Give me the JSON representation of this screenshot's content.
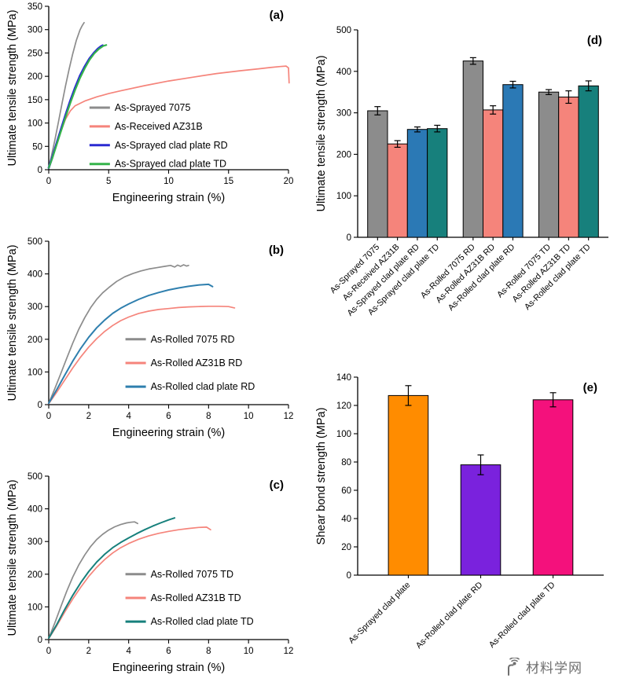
{
  "watermark": {
    "text": "材料学网"
  },
  "chart_data": [
    {
      "panel": "a",
      "type": "line",
      "panel_label": "(a)",
      "xlabel": "Engineering strain (%)",
      "ylabel": "Ultimate tensile strength (MPa)",
      "xlim": [
        0,
        20
      ],
      "ylim": [
        0,
        350
      ],
      "xticks": [
        0,
        5,
        10,
        15,
        20
      ],
      "yticks": [
        0,
        50,
        100,
        150,
        200,
        250,
        300,
        350
      ],
      "legend": {
        "fx": 0.17,
        "fy": 0.62,
        "dy": 0.115
      },
      "series": [
        {
          "name": "As-Sprayed 7075",
          "color": "#8c8c8c",
          "width": 1.7,
          "x": [
            0,
            0.2,
            0.5,
            0.8,
            1.1,
            1.4,
            1.7,
            2.0,
            2.3,
            2.6,
            2.8,
            2.95
          ],
          "y": [
            4,
            26,
            62,
            101,
            141,
            179,
            215,
            248,
            277,
            299,
            309,
            315
          ]
        },
        {
          "name": "As-Received AZ31B",
          "color": "#f5847b",
          "width": 1.7,
          "x": [
            0,
            0.3,
            0.6,
            1.0,
            1.4,
            1.8,
            2.2,
            3.0,
            4.0,
            5.0,
            6.0,
            8.0,
            10.0,
            12.0,
            14.0,
            16.0,
            17.5,
            18.5,
            19.3,
            19.8,
            20.0,
            20.05
          ],
          "y": [
            3,
            24,
            50,
            82,
            108,
            126,
            137,
            147,
            156,
            163,
            169,
            180,
            190,
            198,
            206,
            212,
            216,
            219,
            221,
            222,
            218,
            186
          ]
        },
        {
          "name": "As-Sprayed clad plate RD",
          "color": "#2a2ad2",
          "width": 2.8,
          "x": [
            0,
            0.3,
            0.6,
            1.0,
            1.4,
            1.8,
            2.2,
            2.6,
            3.0,
            3.4,
            3.8,
            4.1,
            4.35,
            4.5
          ],
          "y": [
            4,
            27,
            52,
            85,
            117,
            148,
            176,
            201,
            221,
            238,
            251,
            259,
            264,
            266
          ]
        },
        {
          "name": "As-Sprayed clad plate TD",
          "color": "#35b44a",
          "width": 2.2,
          "x": [
            0,
            0.3,
            0.6,
            1.0,
            1.4,
            1.8,
            2.2,
            2.6,
            3.0,
            3.4,
            3.8,
            4.2,
            4.55,
            4.8
          ],
          "y": [
            4,
            25,
            49,
            81,
            112,
            143,
            171,
            196,
            217,
            235,
            249,
            259,
            265,
            267
          ]
        }
      ]
    },
    {
      "panel": "b",
      "type": "line",
      "panel_label": "(b)",
      "xlabel": "Engineering strain (%)",
      "ylabel": "Ultimate tensile strength (MPa)",
      "xlim": [
        0,
        12
      ],
      "ylim": [
        0,
        500
      ],
      "xticks": [
        0,
        2,
        4,
        6,
        8,
        10,
        12
      ],
      "yticks": [
        0,
        100,
        200,
        300,
        400,
        500
      ],
      "legend": {
        "fx": 0.32,
        "fy": 0.6,
        "dy": 0.145
      },
      "series": [
        {
          "name": "As-Rolled 7075 RD",
          "color": "#8c8c8c",
          "width": 1.7,
          "x": [
            0,
            0.3,
            0.6,
            0.9,
            1.2,
            1.5,
            1.8,
            2.1,
            2.4,
            2.7,
            3.0,
            3.4,
            3.8,
            4.2,
            4.6,
            5.0,
            5.4,
            5.8,
            6.1,
            6.3,
            6.45,
            6.6,
            6.75,
            6.9,
            7.0
          ],
          "y": [
            4,
            48,
            95,
            142,
            188,
            230,
            266,
            297,
            322,
            342,
            358,
            377,
            391,
            401,
            409,
            415,
            419,
            423,
            426,
            421,
            427,
            423,
            428,
            424,
            426
          ]
        },
        {
          "name": "As-Rolled AZ31B RD",
          "color": "#f5847b",
          "width": 1.7,
          "x": [
            0,
            0.4,
            0.8,
            1.2,
            1.6,
            2.0,
            2.4,
            2.8,
            3.2,
            3.6,
            4.0,
            4.5,
            5.0,
            5.5,
            6.0,
            6.5,
            7.0,
            7.5,
            8.0,
            8.5,
            9.0,
            9.3
          ],
          "y": [
            3,
            38,
            75,
            112,
            146,
            176,
            202,
            224,
            242,
            257,
            268,
            279,
            286,
            291,
            294,
            297,
            299,
            300,
            301,
            301,
            300,
            296
          ]
        },
        {
          "name": "As-Rolled clad plate RD",
          "color": "#2f7fae",
          "width": 2.0,
          "x": [
            0,
            0.4,
            0.8,
            1.2,
            1.6,
            2.0,
            2.4,
            2.8,
            3.2,
            3.6,
            4.0,
            4.5,
            5.0,
            5.5,
            6.0,
            6.5,
            7.0,
            7.5,
            8.0,
            8.2
          ],
          "y": [
            4,
            46,
            90,
            133,
            172,
            206,
            235,
            259,
            279,
            295,
            308,
            322,
            334,
            343,
            351,
            357,
            362,
            366,
            368,
            361
          ]
        }
      ]
    },
    {
      "panel": "c",
      "type": "line",
      "panel_label": "(c)",
      "xlabel": "Engineering strain (%)",
      "ylabel": "Ultimate tensile strength (MPa)",
      "xlim": [
        0,
        12
      ],
      "ylim": [
        0,
        500
      ],
      "xticks": [
        0,
        2,
        4,
        6,
        8,
        10,
        12
      ],
      "yticks": [
        0,
        100,
        200,
        300,
        400,
        500
      ],
      "legend": {
        "fx": 0.32,
        "fy": 0.6,
        "dy": 0.145
      },
      "series": [
        {
          "name": "As-Rolled 7075 TD",
          "color": "#8c8c8c",
          "width": 1.7,
          "x": [
            0,
            0.3,
            0.6,
            0.9,
            1.2,
            1.5,
            1.8,
            2.1,
            2.4,
            2.7,
            3.0,
            3.3,
            3.6,
            3.9,
            4.1,
            4.3,
            4.45
          ],
          "y": [
            4,
            50,
            100,
            148,
            191,
            228,
            259,
            285,
            306,
            322,
            335,
            345,
            352,
            357,
            359,
            360,
            355
          ]
        },
        {
          "name": "As-Rolled AZ31B TD",
          "color": "#f5847b",
          "width": 1.7,
          "x": [
            0,
            0.4,
            0.8,
            1.2,
            1.6,
            2.0,
            2.4,
            2.8,
            3.2,
            3.6,
            4.0,
            4.5,
            5.0,
            5.5,
            6.0,
            6.5,
            7.0,
            7.5,
            7.9,
            8.1
          ],
          "y": [
            3,
            42,
            84,
            124,
            160,
            193,
            221,
            245,
            265,
            281,
            294,
            307,
            317,
            325,
            331,
            336,
            340,
            343,
            344,
            336
          ]
        },
        {
          "name": "As-Rolled clad plate TD",
          "color": "#17807c",
          "width": 2.0,
          "x": [
            0,
            0.4,
            0.8,
            1.2,
            1.6,
            2.0,
            2.4,
            2.8,
            3.2,
            3.6,
            4.0,
            4.4,
            4.8,
            5.2,
            5.6,
            6.0,
            6.3
          ],
          "y": [
            4,
            46,
            92,
            135,
            174,
            208,
            237,
            261,
            281,
            297,
            311,
            324,
            336,
            347,
            357,
            366,
            372
          ]
        }
      ]
    },
    {
      "panel": "d",
      "type": "bar",
      "panel_label": "(d)",
      "ylabel": "Ultimate tensile strength (MPa)",
      "ylim": [
        0,
        500
      ],
      "yticks": [
        0,
        100,
        200,
        300,
        400,
        500
      ],
      "group_gap": 0.8,
      "side_pad": 0.5,
      "bar_frac": 1,
      "groups": [
        [
          {
            "label": "As-Sprayed 7075",
            "value": 305,
            "error": 10,
            "color": "#8c8c8c"
          },
          {
            "label": "As-Received AZ31B",
            "value": 225,
            "error": 8,
            "color": "#f5847b"
          },
          {
            "label": "As-Sprayed clad plate RD",
            "value": 260,
            "error": 6,
            "color": "#2b79b5"
          },
          {
            "label": "As-Sprayed clad plate TD",
            "value": 262,
            "error": 8,
            "color": "#17807c"
          }
        ],
        [
          {
            "label": "As-Rolled 7075 RD",
            "value": 425,
            "error": 8,
            "color": "#8c8c8c"
          },
          {
            "label": "As-Rolled AZ31B RD",
            "value": 307,
            "error": 10,
            "color": "#f5847b"
          },
          {
            "label": "As-Rolled clad plate RD",
            "value": 368,
            "error": 8,
            "color": "#2b79b5"
          }
        ],
        [
          {
            "label": "As-Rolled 7075 TD",
            "value": 350,
            "error": 6,
            "color": "#8c8c8c"
          },
          {
            "label": "As-Rolled AZ31B TD",
            "value": 338,
            "error": 15,
            "color": "#f5847b"
          },
          {
            "label": "As-Rolled clad plate TD",
            "value": 365,
            "error": 12,
            "color": "#17807c"
          }
        ]
      ]
    },
    {
      "panel": "e",
      "type": "bar",
      "panel_label": "(e)",
      "ylabel": "Shear bond strength (MPa)",
      "ylim": [
        0,
        140
      ],
      "yticks": [
        0,
        20,
        40,
        60,
        80,
        100,
        120,
        140
      ],
      "group_gap": 0,
      "side_pad": 0.2,
      "bar_frac": 0.55,
      "groups": [
        [
          {
            "label": "As-Sprayed clad plate",
            "value": 127,
            "error": 7,
            "color": "#ff8c00"
          },
          {
            "label": "As-Rolled clad plate RD",
            "value": 78,
            "error": 7,
            "color": "#7a22dd"
          },
          {
            "label": "As-Rolled clad plate TD",
            "value": 124,
            "error": 5,
            "color": "#f4117c"
          }
        ]
      ]
    }
  ]
}
